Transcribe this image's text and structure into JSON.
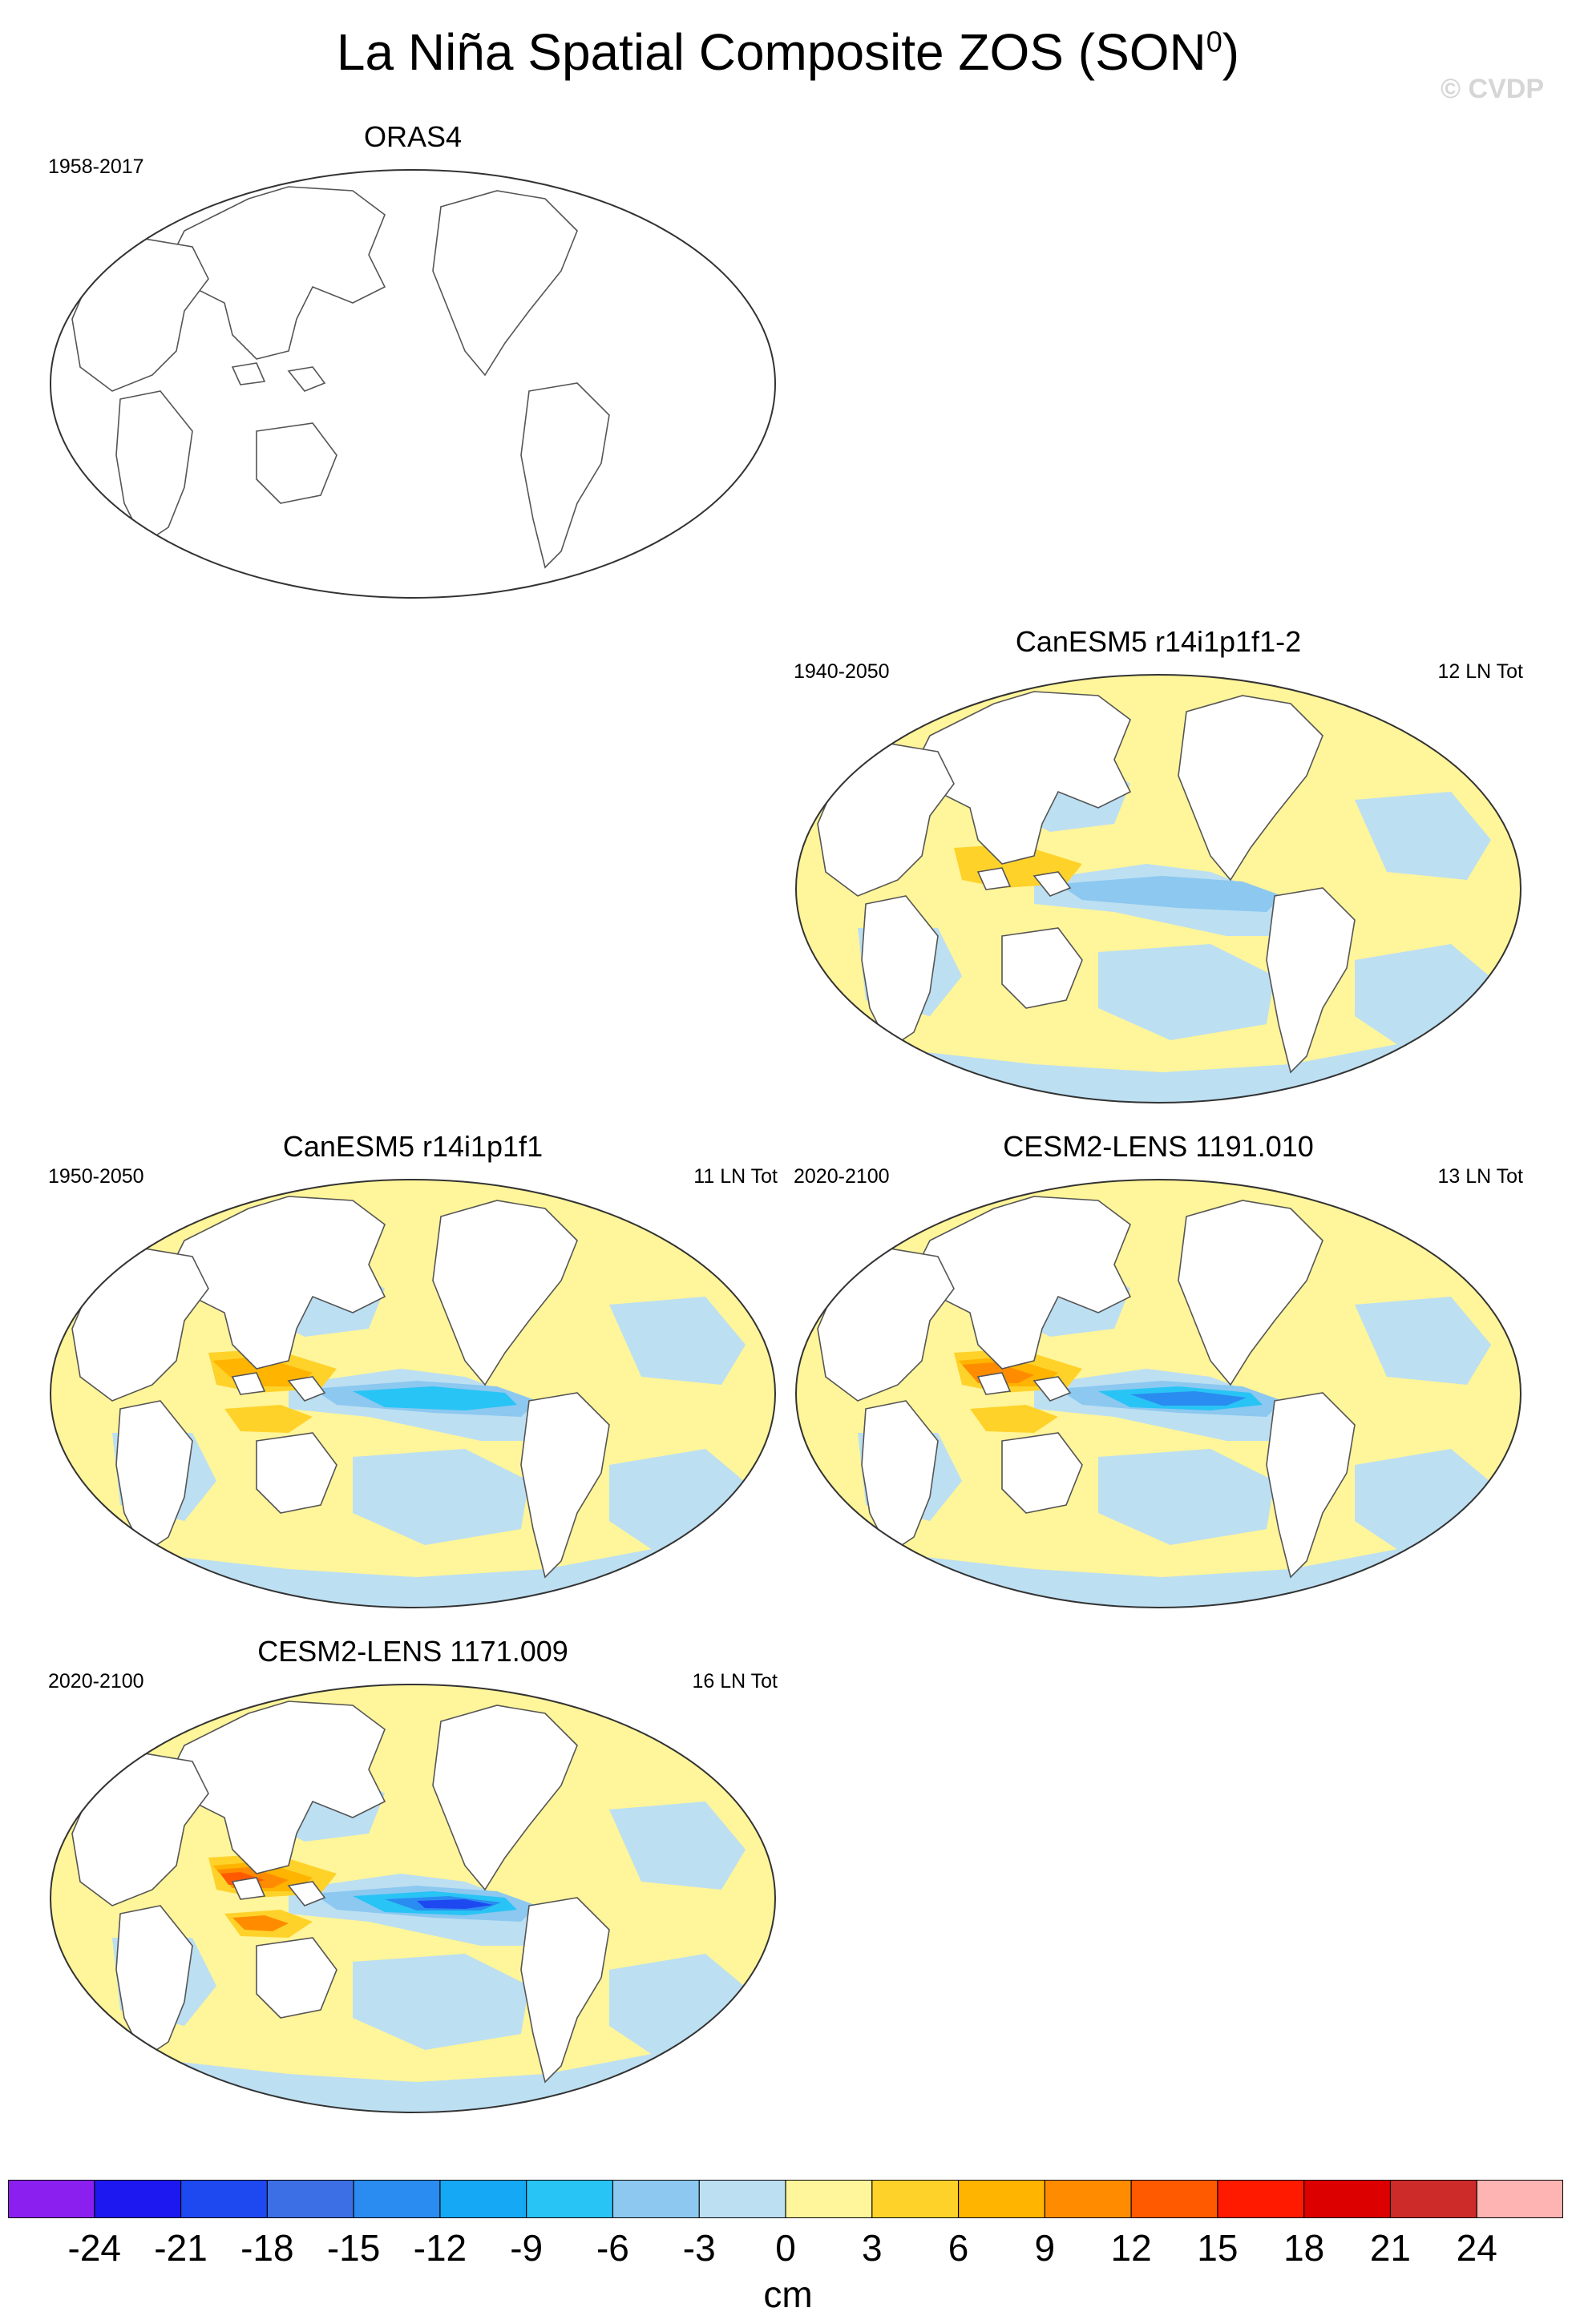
{
  "title": "La Niña Spatial Composite ZOS (SON",
  "title_sup": "0",
  "title_end": ")",
  "watermark": "© CVDP",
  "panels": [
    {
      "name": "ORAS4",
      "period": "1958-2017",
      "count": "",
      "filled": false,
      "intensity": 0
    },
    {
      "name": "CanESM5 r14i1p1f1-2",
      "period": "1940-2050",
      "count": "12 LN Tot",
      "filled": true,
      "intensity": 1
    },
    {
      "name": "CanESM5 r14i1p1f1",
      "period": "1950-2050",
      "count": "11 LN Tot",
      "filled": true,
      "intensity": 2
    },
    {
      "name": "CESM2-LENS 1191.010",
      "period": "2020-2100",
      "count": "13 LN Tot",
      "filled": true,
      "intensity": 3
    },
    {
      "name": "CESM2-LENS 1171.009",
      "period": "2020-2100",
      "count": "16 LN Tot",
      "filled": true,
      "intensity": 4
    }
  ],
  "colorbar": {
    "labels": [
      "-24",
      "-21",
      "-18",
      "-15",
      "-12",
      "-9",
      "-6",
      "-3",
      "0",
      "3",
      "6",
      "9",
      "12",
      "15",
      "18",
      "21",
      "24"
    ],
    "colors": [
      "#8b1ff0",
      "#1e18f0",
      "#1e48f0",
      "#3c6ee6",
      "#2a8cf0",
      "#14a8f5",
      "#28c4f5",
      "#8cc8f0",
      "#bcdff2",
      "#fff59a",
      "#ffd22a",
      "#ffb400",
      "#ff8c00",
      "#ff5a00",
      "#ff1a00",
      "#dc0000",
      "#cd2a2a",
      "#ffb4b4"
    ],
    "units": "cm"
  }
}
